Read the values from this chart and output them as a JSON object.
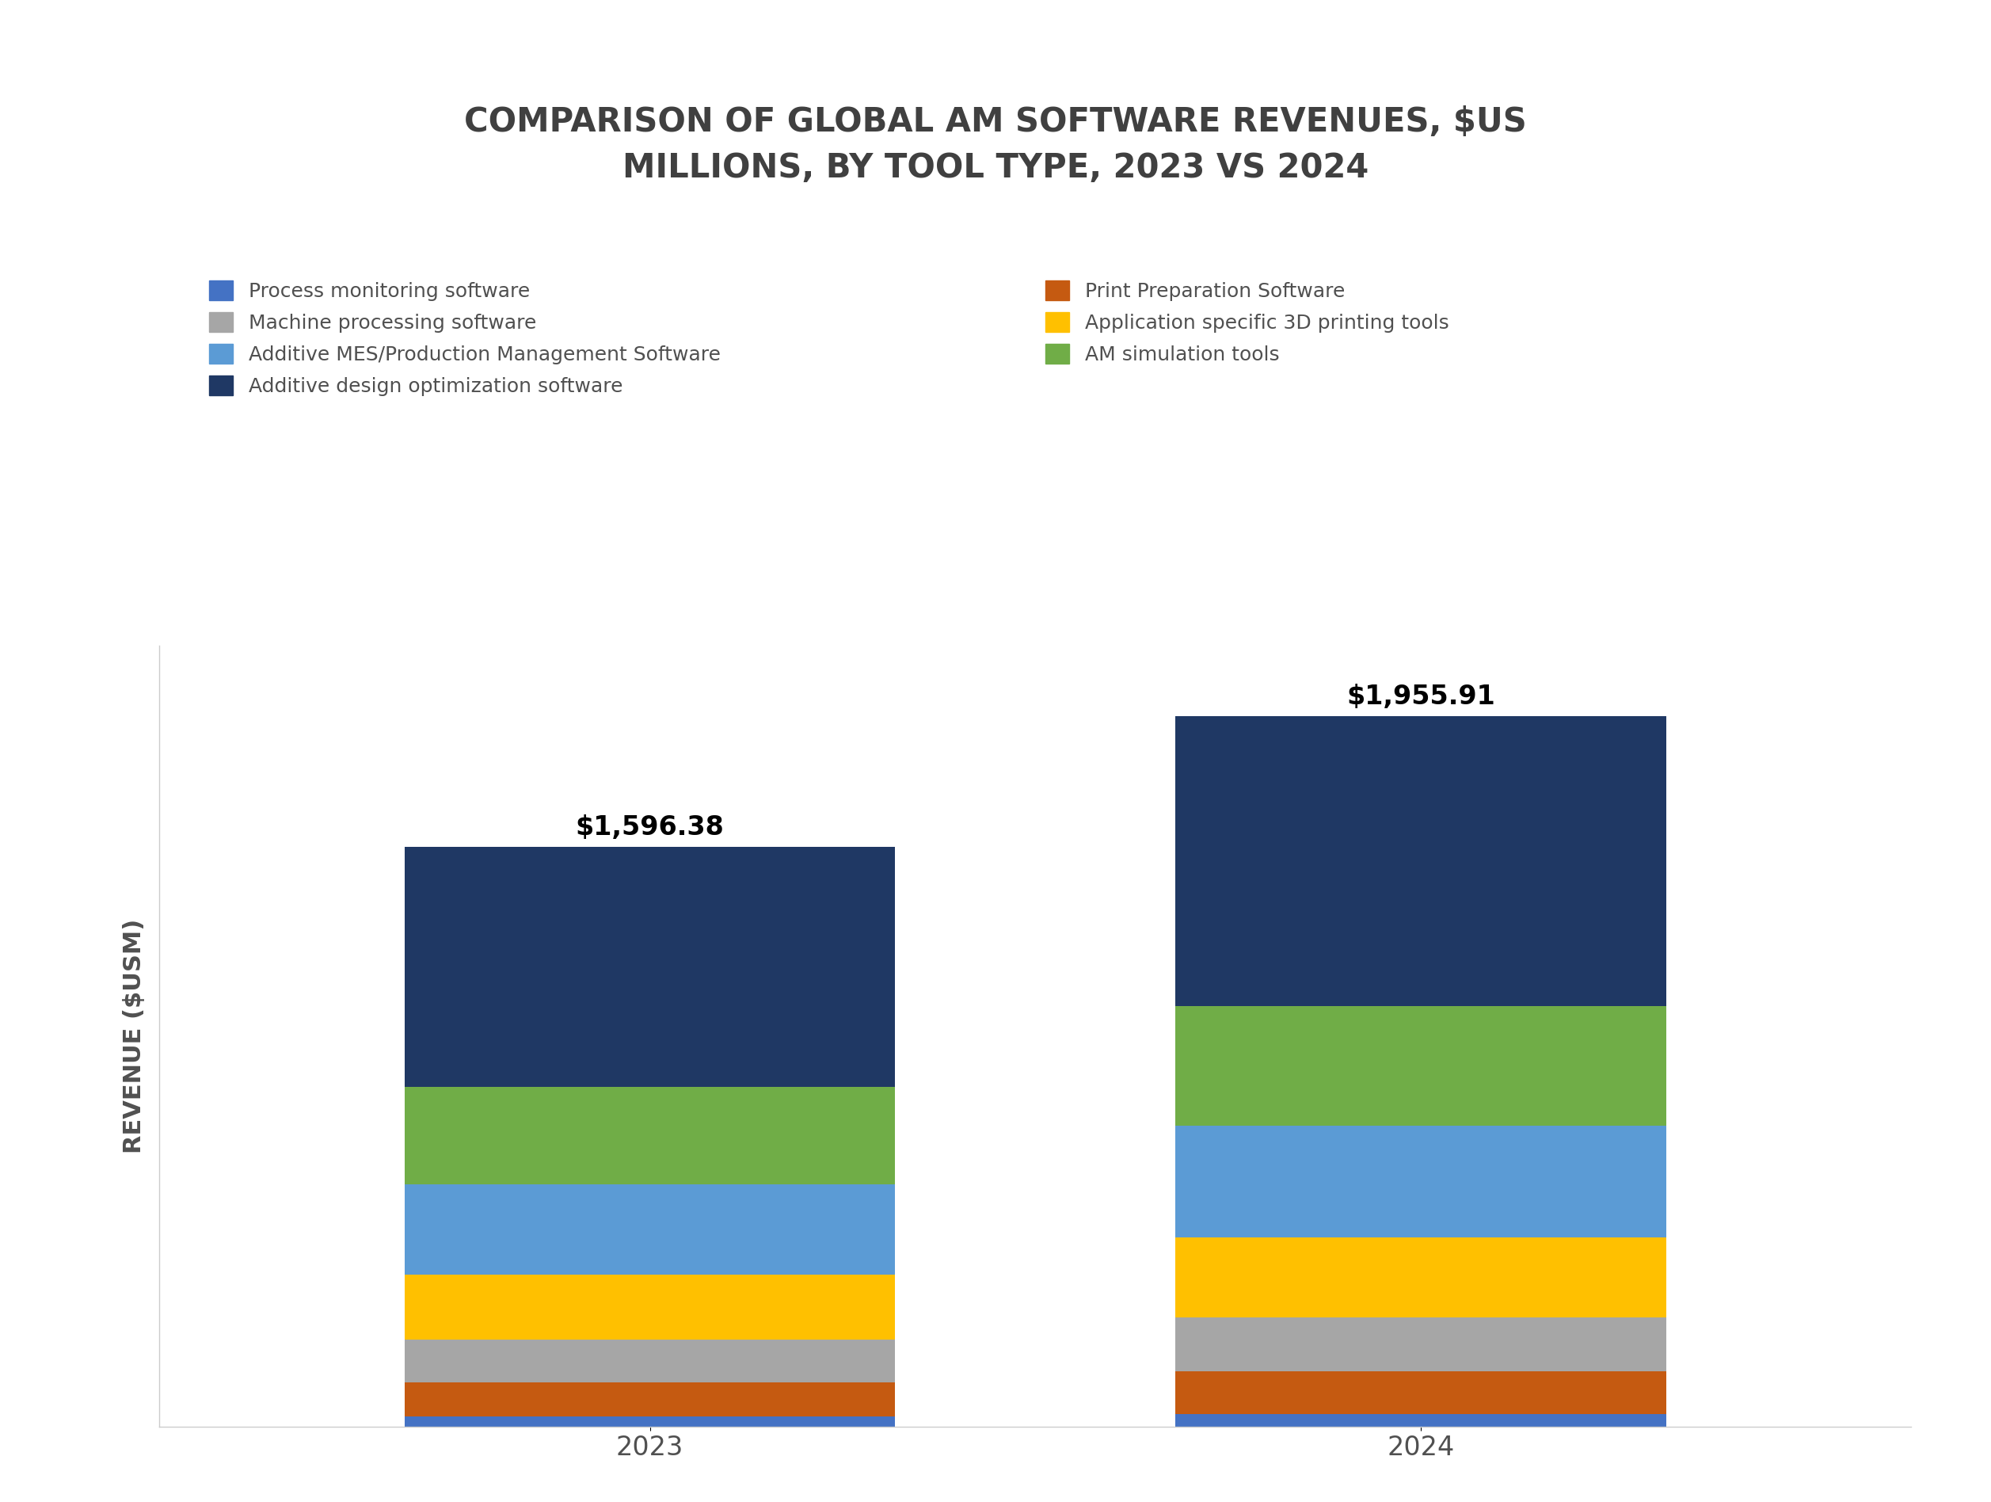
{
  "title": "COMPARISON OF GLOBAL AM SOFTWARE REVENUES, $US\nMILLIONS, BY TOOL TYPE, 2023 VS 2024",
  "ylabel": "REVENUE ($USM)",
  "years": [
    "2023",
    "2024"
  ],
  "totals": [
    "$1,596.38",
    "$1,955.91"
  ],
  "categories_left": [
    "Process monitoring software",
    "Machine processing software",
    "Additive MES/Production Management Software",
    "Additive design optimization software"
  ],
  "categories_right": [
    "Print Preparation Software",
    "Application specific 3D printing tools",
    "AM simulation tools"
  ],
  "colors_left": [
    "#4472C4",
    "#A6A6A6",
    "#5B9BD5",
    "#1F3864"
  ],
  "colors_right": [
    "#C55A11",
    "#FFC000",
    "#70AD47"
  ],
  "all_colors": [
    "#4472C4",
    "#C55A11",
    "#A6A6A6",
    "#FFC000",
    "#5B9BD5",
    "#70AD47",
    "#1F3864"
  ],
  "values_2023": [
    28,
    95,
    118,
    178,
    248,
    268,
    661.38
  ],
  "values_2024": [
    35,
    118,
    148,
    220,
    308,
    330,
    796.91
  ],
  "background_color": "#FFFFFF",
  "title_color": "#404040",
  "total_label_fontsize": 24,
  "title_fontsize": 30,
  "legend_fontsize": 18,
  "ylabel_fontsize": 22,
  "tick_fontsize": 24
}
